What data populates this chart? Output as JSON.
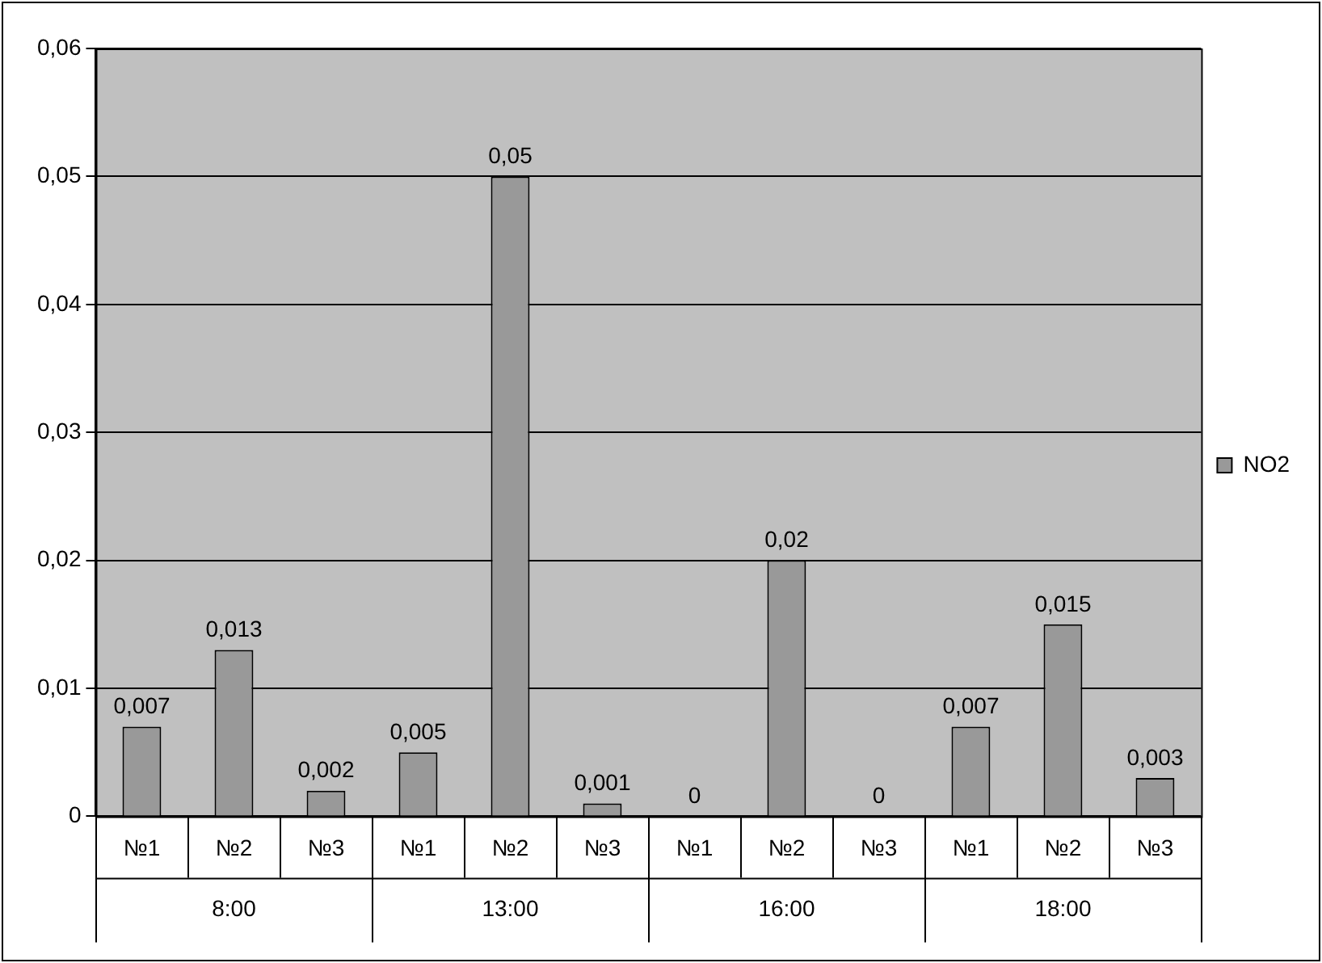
{
  "chart_data": {
    "type": "bar",
    "categories": [
      "№1",
      "№2",
      "№3",
      "№1",
      "№2",
      "№3",
      "№1",
      "№2",
      "№3",
      "№1",
      "№2",
      "№3"
    ],
    "annotations": [
      "8:00",
      "13:00",
      "16:00",
      "18:00"
    ],
    "series": [
      {
        "name": "NO2",
        "color": "#999999",
        "values": [
          0.007,
          0.013,
          0.002,
          0.005,
          0.05,
          0.001,
          0,
          0.02,
          0,
          0.007,
          0.015,
          0.003
        ],
        "value_labels": [
          "0,007",
          "0,013",
          "0,002",
          "0,005",
          "0,05",
          "0,001",
          "0",
          "0,02",
          "0",
          "0,007",
          "0,015",
          "0,003"
        ]
      }
    ],
    "ylim": [
      0,
      0.06
    ],
    "yticks": [
      0,
      {
        "value": 0.01,
        "label": "0,01"
      },
      {
        "value": 0.02,
        "label": "0,02"
      },
      {
        "value": 0.03,
        "label": "0,03"
      },
      {
        "value": 0.04,
        "label": "0,04"
      },
      {
        "value": 0.05,
        "label": "0,05"
      },
      {
        "value": 0.06,
        "label": "0,06"
      }
    ],
    "grid": "y",
    "legend": "right"
  }
}
